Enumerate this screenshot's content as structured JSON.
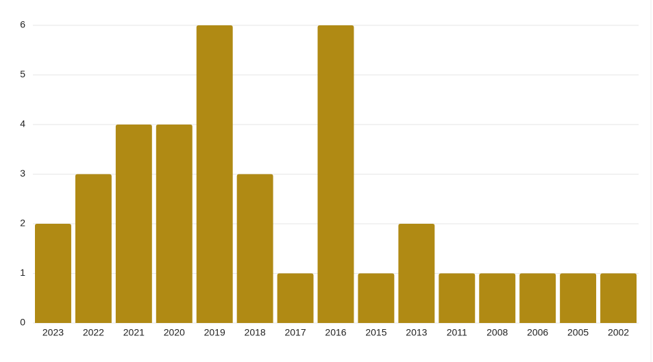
{
  "chart_data": {
    "type": "bar",
    "categories": [
      "2023",
      "2022",
      "2021",
      "2020",
      "2019",
      "2018",
      "2017",
      "2016",
      "2015",
      "2013",
      "2011",
      "2008",
      "2006",
      "2005",
      "2002"
    ],
    "values": [
      2,
      3,
      4,
      4,
      6,
      3,
      1,
      6,
      1,
      2,
      1,
      1,
      1,
      1,
      1
    ],
    "color": "#b08a14",
    "ylim": [
      0,
      6
    ],
    "yticks": [
      0,
      1,
      2,
      3,
      4,
      5,
      6
    ],
    "grid": true
  }
}
